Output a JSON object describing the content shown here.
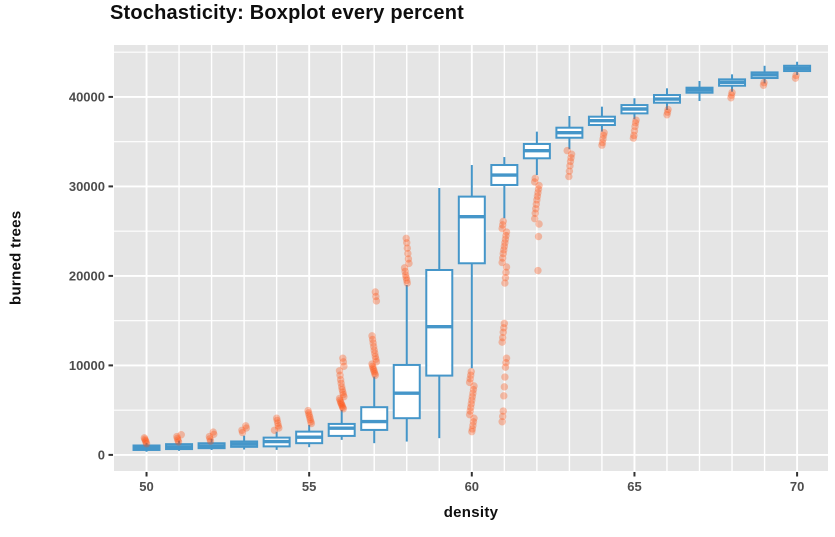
{
  "title": "Stochasticity: Boxplot every percent",
  "chart_data": {
    "type": "boxplot",
    "title": "Stochasticity: Boxplot every percent",
    "xlabel": "density",
    "ylabel": "burned trees",
    "x_ticks": [
      50,
      55,
      60,
      65,
      70
    ],
    "y_ticks": [
      0,
      10000,
      20000,
      30000,
      40000
    ],
    "y_minor_ticks": [
      5000,
      15000,
      25000,
      35000,
      45000
    ],
    "x_gridlines": [
      50,
      51,
      52,
      53,
      54,
      55,
      56,
      57,
      58,
      59,
      60,
      61,
      62,
      63,
      64,
      65,
      66,
      67,
      68,
      69,
      70
    ],
    "xlim": [
      49.0,
      70.95
    ],
    "ylim": [
      -1800,
      45800
    ],
    "grid": true,
    "legend": "none",
    "colors": {
      "box_stroke": "#4596c9",
      "box_fill": "#ffffff",
      "outlier": "#ff4e0e",
      "panel_bg": "#e5e5e5",
      "grid": "#ffffff",
      "tick_text": "#4d4d4d",
      "tick_mark": "#333333",
      "title_text": "#0e0e0e"
    },
    "boxes": [
      {
        "x": 50,
        "whisker_low": 350,
        "q1": 550,
        "median": 800,
        "q3": 1050,
        "whisker_high": 1350,
        "outliers": [
          1250,
          1450,
          1600,
          1750,
          1900
        ]
      },
      {
        "x": 51,
        "whisker_low": 450,
        "q1": 650,
        "median": 900,
        "q3": 1200,
        "whisker_high": 1600,
        "outliers": [
          1450,
          1650,
          1850,
          2050,
          2250
        ]
      },
      {
        "x": 52,
        "whisker_low": 550,
        "q1": 750,
        "median": 1000,
        "q3": 1300,
        "whisker_high": 1800,
        "outliers": [
          1550,
          1800,
          2050,
          2300,
          2550
        ]
      },
      {
        "x": 53,
        "whisker_low": 600,
        "q1": 900,
        "median": 1200,
        "q3": 1500,
        "whisker_high": 2150,
        "outliers": [
          2500,
          2750,
          3000,
          3250
        ]
      },
      {
        "x": 54,
        "whisker_low": 560,
        "q1": 950,
        "median": 1490,
        "q3": 1930,
        "whisker_high": 2600,
        "outliers": [
          2750,
          3000,
          3250,
          3550,
          3850,
          4100
        ]
      },
      {
        "x": 55,
        "whisker_low": 860,
        "q1": 1310,
        "median": 1980,
        "q3": 2600,
        "whisker_high": 3350,
        "outliers": [
          3500,
          3700,
          3950,
          4200,
          4450,
          4700,
          4950
        ]
      },
      {
        "x": 56,
        "whisker_low": 1680,
        "q1": 2120,
        "median": 2980,
        "q3": 3460,
        "whisker_high": 5030,
        "outliers": [
          5150,
          5300,
          5450,
          5600,
          5750,
          5900,
          6100,
          6300,
          6500,
          6750,
          7000,
          7300,
          7600,
          8000,
          8400,
          8900,
          9400,
          9900,
          10400,
          10800
        ]
      },
      {
        "x": 57,
        "whisker_low": 1310,
        "q1": 2790,
        "median": 3720,
        "q3": 5330,
        "whisker_high": 8750,
        "outliers": [
          8900,
          9100,
          9300,
          9500,
          9700,
          9900,
          10150,
          10400,
          10700,
          11000,
          11350,
          11700,
          12100,
          12500,
          12900,
          13300,
          17200,
          17700,
          18200
        ]
      },
      {
        "x": 58,
        "whisker_low": 1490,
        "q1": 4100,
        "median": 6890,
        "q3": 10050,
        "whisker_high": 18990,
        "outliers": [
          19200,
          19500,
          19800,
          20100,
          20500,
          20900,
          21400,
          21900,
          22500,
          23100,
          23700,
          24200
        ]
      },
      {
        "x": 59,
        "whisker_low": 1870,
        "q1": 8860,
        "median": 14330,
        "q3": 20660,
        "whisker_high": 29820,
        "outliers": []
      },
      {
        "x": 60,
        "whisker_low": 9680,
        "q1": 21410,
        "median": 26620,
        "q3": 28860,
        "whisker_high": 32390,
        "outliers": [
          9300,
          8900,
          8500,
          8100,
          7700,
          7300,
          6900,
          6500,
          6100,
          5700,
          5300,
          4900,
          4500,
          4100,
          3700,
          3300,
          2900,
          2600
        ]
      },
      {
        "x": 61,
        "whisker_low": 26440,
        "q1": 30160,
        "median": 31270,
        "q3": 32390,
        "whisker_high": 33280,
        "outliers": [
          26100,
          25700,
          25300,
          24900,
          24500,
          24100,
          23700,
          23300,
          22900,
          22500,
          22000,
          21500,
          21000,
          20400,
          19800,
          19200,
          14700,
          14200,
          13700,
          13100,
          12600,
          10800,
          10300,
          9800,
          8700,
          7600,
          6600,
          4900,
          4300,
          3700
        ]
      },
      {
        "x": 62,
        "whisker_low": 31270,
        "q1": 33140,
        "median": 33990,
        "q3": 34740,
        "whisker_high": 36120,
        "outliers": [
          30900,
          30500,
          30100,
          29700,
          29300,
          28900,
          28500,
          28000,
          27500,
          27000,
          26400,
          25800,
          24400,
          20600
        ]
      },
      {
        "x": 63,
        "whisker_low": 34150,
        "q1": 35440,
        "median": 36000,
        "q3": 36560,
        "whisker_high": 37870,
        "outliers": [
          34000,
          33600,
          33200,
          32800,
          32300,
          31700,
          31100
        ]
      },
      {
        "x": 64,
        "whisker_low": 36120,
        "q1": 36860,
        "median": 37340,
        "q3": 37790,
        "whisker_high": 38910,
        "outliers": [
          36000,
          35700,
          35300,
          34900,
          34600
        ]
      },
      {
        "x": 65,
        "whisker_low": 37500,
        "q1": 38160,
        "median": 38650,
        "q3": 39090,
        "whisker_high": 39850,
        "outliers": [
          37400,
          37100,
          36700,
          36200,
          35700,
          35400
        ]
      },
      {
        "x": 66,
        "whisker_low": 38530,
        "q1": 39350,
        "median": 39760,
        "q3": 40210,
        "whisker_high": 40960,
        "outliers": [
          38600,
          38300,
          38000
        ]
      },
      {
        "x": 67,
        "whisker_low": 39540,
        "q1": 40470,
        "median": 40770,
        "q3": 41030,
        "whisker_high": 41780,
        "outliers": []
      },
      {
        "x": 68,
        "whisker_low": 40580,
        "q1": 41250,
        "median": 41630,
        "q3": 41960,
        "whisker_high": 42520,
        "outliers": [
          40500,
          40200,
          39900
        ]
      },
      {
        "x": 69,
        "whisker_low": 41510,
        "q1": 42110,
        "median": 42450,
        "q3": 42740,
        "whisker_high": 43480,
        "outliers": [
          41600,
          41300
        ]
      },
      {
        "x": 70,
        "whisker_low": 42450,
        "q1": 42890,
        "median": 43190,
        "q3": 43480,
        "whisker_high": 43930,
        "outliers": [
          42400,
          42100
        ]
      }
    ]
  }
}
